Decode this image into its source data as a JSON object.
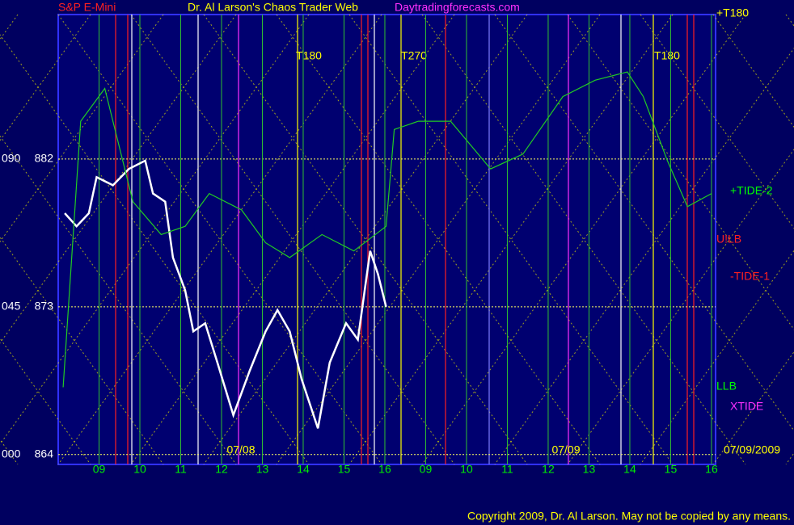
{
  "chart_data": {
    "type": "line",
    "title_left": "S&P E-Mini",
    "title": "Dr. Al Larson's Chaos Trader Web",
    "site": "Daytradingforecasts.com",
    "copyright": "Copyright 2009, Dr. Al Larson. May not be copied by any means.",
    "ylim": [
      863.4,
      890.8
    ],
    "yticks": [
      864,
      873,
      882
    ],
    "angle_labels": [
      "000",
      "045",
      "090"
    ],
    "xlim": [
      0,
      16.1
    ],
    "xticks": [
      {
        "value": 1,
        "label": "09"
      },
      {
        "value": 2,
        "label": "10"
      },
      {
        "value": 3,
        "label": "11"
      },
      {
        "value": 4,
        "label": "12"
      },
      {
        "value": 5,
        "label": "13"
      },
      {
        "value": 6,
        "label": "14"
      },
      {
        "value": 7,
        "label": "15"
      },
      {
        "value": 8,
        "label": "16"
      },
      {
        "value": 9,
        "label": "09"
      },
      {
        "value": 10,
        "label": "10"
      },
      {
        "value": 11,
        "label": "11"
      },
      {
        "value": 12,
        "label": "12"
      },
      {
        "value": 13,
        "label": "13"
      },
      {
        "value": 14,
        "label": "14"
      },
      {
        "value": 15,
        "label": "15"
      },
      {
        "value": 16,
        "label": "16"
      }
    ],
    "date_labels": [
      "07/08",
      "07/09",
      "07/09/2009"
    ],
    "annotations": [
      "T180",
      "T270",
      "T180",
      "+T180",
      "+TIDE-2",
      "U!LB",
      "-TIDE-1",
      "LLB",
      "XTIDE"
    ],
    "grid": true,
    "series": [
      {
        "color": "#ffffff",
        "x": [
          0.16,
          0.45,
          0.75,
          0.94,
          1.34,
          1.73,
          2.13,
          2.32,
          2.62,
          2.81,
          3.11,
          3.31,
          3.6,
          3.9,
          4.29,
          4.69,
          5.08,
          5.37,
          5.67,
          5.96,
          6.36,
          6.65,
          7.05,
          7.34,
          7.64,
          7.83,
          8.03
        ],
        "values": [
          878.7,
          877.9,
          878.7,
          880.9,
          880.4,
          881.4,
          881.9,
          879.9,
          879.4,
          876.0,
          874.0,
          871.5,
          872.0,
          869.6,
          866.4,
          869.1,
          871.5,
          872.8,
          871.5,
          868.6,
          865.6,
          869.6,
          872.0,
          871.0,
          876.4,
          875.0,
          873.0
        ]
      },
      {
        "color": "#22cc22",
        "x": [
          0.12,
          0.55,
          1.14,
          1.83,
          2.52,
          3.11,
          3.7,
          4.49,
          5.08,
          5.67,
          6.46,
          7.24,
          8.03,
          8.23,
          8.82,
          9.61,
          10.59,
          11.38,
          12.36,
          13.15,
          13.94,
          14.33,
          14.92,
          15.41,
          16.0
        ],
        "values": [
          868.1,
          884.3,
          886.3,
          879.4,
          877.4,
          877.9,
          879.9,
          878.9,
          876.9,
          876.0,
          877.4,
          876.4,
          877.9,
          883.8,
          884.3,
          884.3,
          881.4,
          882.3,
          885.8,
          886.8,
          887.3,
          885.8,
          881.9,
          879.1,
          879.9
        ]
      }
    ]
  }
}
